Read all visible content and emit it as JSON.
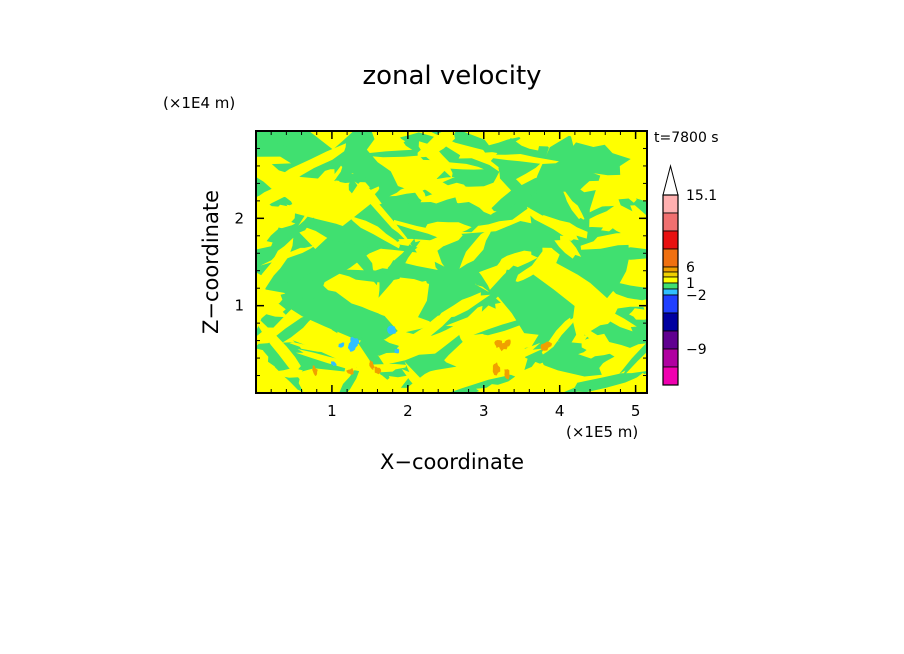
{
  "chart_data": {
    "type": "heatmap",
    "title": "zonal velocity",
    "xlabel": "X−coordinate",
    "ylabel": "Z−coordinate",
    "x_unit": "(×1E5 m)",
    "y_unit": "(×1E4 m)",
    "time_label": "t=7800 s",
    "xlim": [
      0,
      5.15
    ],
    "ylim": [
      0,
      3.0
    ],
    "x_ticks": [
      1,
      2,
      3,
      4,
      5
    ],
    "y_ticks": [
      1,
      2
    ],
    "x_tick_labels": [
      "1",
      "2",
      "3",
      "4",
      "5"
    ],
    "y_tick_labels": [
      "1",
      "2"
    ],
    "colorbar": {
      "labeled_levels": [
        "15.1",
        "6",
        "1",
        "−2",
        "−9"
      ],
      "colors_top_to_bottom": [
        "#ffb0b0",
        "#f07070",
        "#e81010",
        "#f07010",
        "#f0a000",
        "#f0d000",
        "#ffff00",
        "#40e070",
        "#30c0ff",
        "#2040ff",
        "#0000a0",
        "#600090",
        "#b000a0",
        "#f000b0"
      ],
      "has_top_arrow": true
    },
    "dominant_colors": {
      "positive_small": "#ffff00",
      "negative_small": "#40e070",
      "moderate_positive": "#f0a000",
      "moderate_negative": "#30c0ff"
    }
  }
}
